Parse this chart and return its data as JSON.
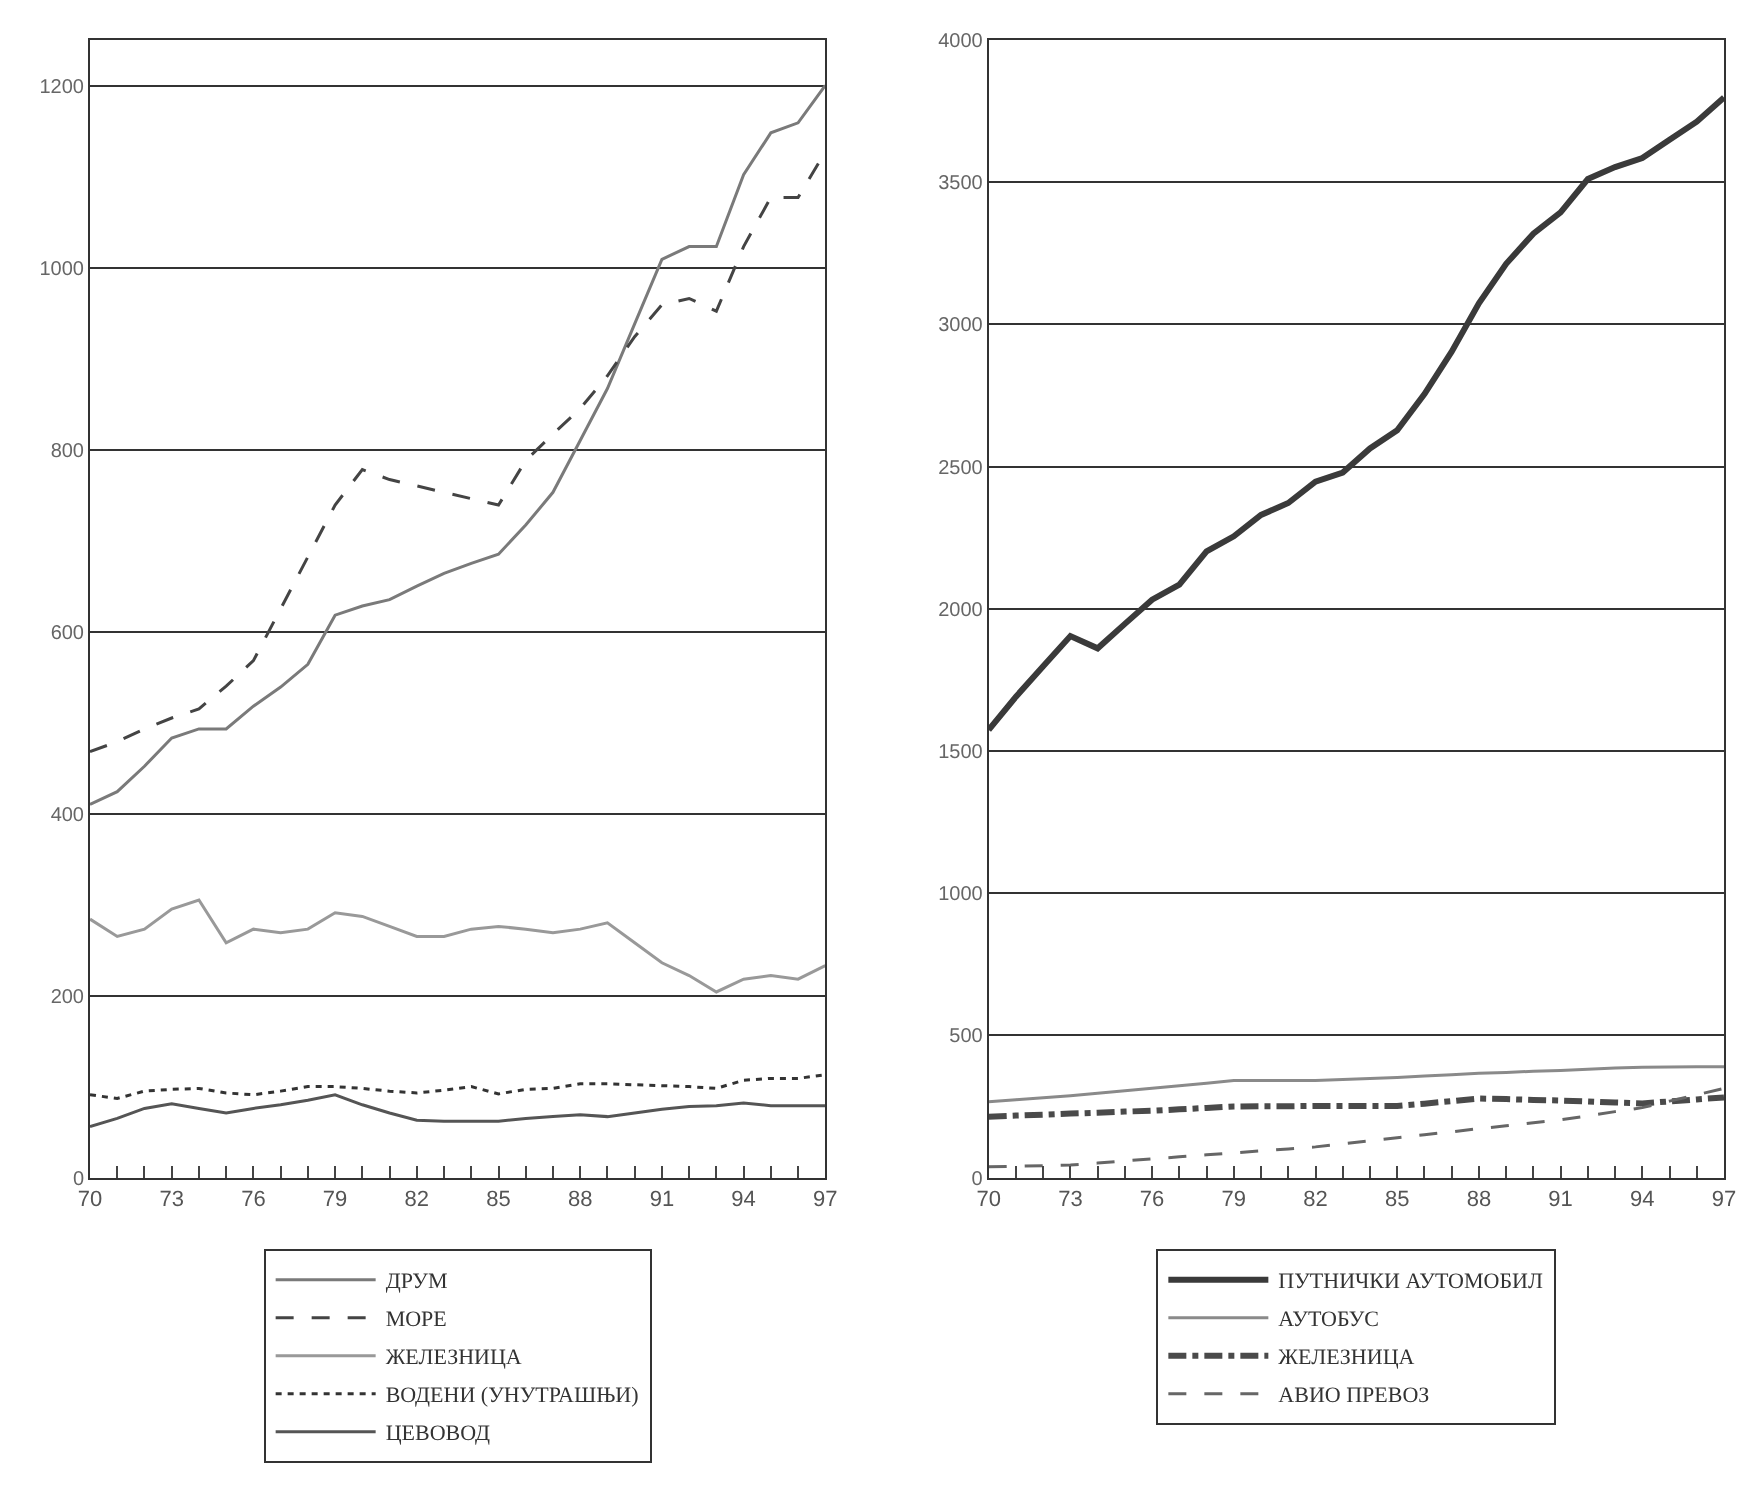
{
  "chart_data": [
    {
      "type": "line",
      "x": [
        1970,
        1971,
        1972,
        1973,
        1974,
        1975,
        1976,
        1977,
        1978,
        1979,
        1980,
        1981,
        1982,
        1983,
        1984,
        1985,
        1986,
        1987,
        1988,
        1989,
        1990,
        1991,
        1992,
        1993,
        1994,
        1995,
        1996,
        1997
      ],
      "xlim": [
        1970,
        1997
      ],
      "xticks": [
        {
          "value": 1970,
          "label": "70"
        },
        {
          "value": 1971,
          "label": null
        },
        {
          "value": 1972,
          "label": null
        },
        {
          "value": 1973,
          "label": "73"
        },
        {
          "value": 1974,
          "label": null
        },
        {
          "value": 1975,
          "label": null
        },
        {
          "value": 1976,
          "label": "76"
        },
        {
          "value": 1977,
          "label": null
        },
        {
          "value": 1978,
          "label": null
        },
        {
          "value": 1979,
          "label": "79"
        },
        {
          "value": 1980,
          "label": null
        },
        {
          "value": 1981,
          "label": null
        },
        {
          "value": 1982,
          "label": "82"
        },
        {
          "value": 1983,
          "label": null
        },
        {
          "value": 1984,
          "label": null
        },
        {
          "value": 1985,
          "label": "85"
        },
        {
          "value": 1986,
          "label": null
        },
        {
          "value": 1987,
          "label": null
        },
        {
          "value": 1988,
          "label": "88"
        },
        {
          "value": 1989,
          "label": null
        },
        {
          "value": 1990,
          "label": null
        },
        {
          "value": 1991,
          "label": "91"
        },
        {
          "value": 1992,
          "label": null
        },
        {
          "value": 1993,
          "label": null
        },
        {
          "value": 1994,
          "label": "94"
        },
        {
          "value": 1995,
          "label": null
        },
        {
          "value": 1996,
          "label": null
        },
        {
          "value": 1997,
          "label": "97"
        }
      ],
      "ylim": [
        0,
        1250
      ],
      "yticks": [
        0,
        200,
        400,
        600,
        800,
        1000,
        1200
      ],
      "grid": "y",
      "legend": "bottom",
      "series": [
        {
          "name": "ДРУМ",
          "color": "#7a7a7a",
          "line_style": "solid",
          "values": [
            410,
            424,
            452,
            483,
            493,
            493,
            518,
            539,
            564,
            618,
            628,
            635,
            650,
            664,
            675,
            685,
            717,
            753,
            810,
            867,
            938,
            1009,
            1023,
            1023,
            1102,
            1148,
            1159,
            1200
          ]
        },
        {
          "name": "МОРЕ",
          "color": "#444444",
          "line_style": "dashed",
          "values": [
            468,
            479,
            493,
            505,
            515,
            540,
            568,
            625,
            682,
            739,
            778,
            767,
            760,
            753,
            746,
            739,
            788,
            817,
            845,
            881,
            924,
            959,
            966,
            952,
            1023,
            1077,
            1077,
            1127
          ]
        },
        {
          "name": "ЖЕЛЕЗНИЦА",
          "color": "#999999",
          "line_style": "solid",
          "values": [
            284,
            265,
            273,
            295,
            305,
            258,
            273,
            269,
            273,
            291,
            287,
            276,
            265,
            265,
            273,
            276,
            273,
            269,
            273,
            280,
            258,
            236,
            222,
            204,
            218,
            222,
            218,
            233
          ]
        },
        {
          "name": "ВОДЕНИ (УНУТРАШЊИ)",
          "color": "#333333",
          "line_style": "dotted",
          "values": [
            91,
            87,
            95,
            97,
            98,
            93,
            91,
            95,
            100,
            100,
            98,
            95,
            93,
            96,
            100,
            92,
            97,
            98,
            103,
            103,
            102,
            101,
            100,
            98,
            107,
            109,
            109,
            113
          ]
        },
        {
          "name": "ЦЕВОВОД",
          "color": "#555555",
          "line_style": "solid",
          "values": [
            56,
            65,
            76,
            81,
            76,
            71,
            76,
            80,
            85,
            91,
            80,
            71,
            63,
            62,
            62,
            62,
            65,
            67,
            69,
            67,
            71,
            75,
            78,
            79,
            82,
            79,
            79,
            79
          ]
        }
      ]
    },
    {
      "type": "line",
      "x": [
        1970,
        1971,
        1972,
        1973,
        1974,
        1975,
        1976,
        1977,
        1978,
        1979,
        1980,
        1981,
        1982,
        1983,
        1984,
        1985,
        1986,
        1987,
        1988,
        1989,
        1990,
        1991,
        1992,
        1993,
        1994,
        1995,
        1996,
        1997
      ],
      "xlim": [
        1970,
        1997
      ],
      "xticks": [
        {
          "value": 1970,
          "label": "70"
        },
        {
          "value": 1971,
          "label": null
        },
        {
          "value": 1972,
          "label": null
        },
        {
          "value": 1973,
          "label": "73"
        },
        {
          "value": 1974,
          "label": null
        },
        {
          "value": 1975,
          "label": null
        },
        {
          "value": 1976,
          "label": "76"
        },
        {
          "value": 1977,
          "label": null
        },
        {
          "value": 1978,
          "label": null
        },
        {
          "value": 1979,
          "label": "79"
        },
        {
          "value": 1980,
          "label": null
        },
        {
          "value": 1981,
          "label": null
        },
        {
          "value": 1982,
          "label": "82"
        },
        {
          "value": 1983,
          "label": null
        },
        {
          "value": 1984,
          "label": null
        },
        {
          "value": 1985,
          "label": "85"
        },
        {
          "value": 1986,
          "label": null
        },
        {
          "value": 1987,
          "label": null
        },
        {
          "value": 1988,
          "label": "88"
        },
        {
          "value": 1989,
          "label": null
        },
        {
          "value": 1990,
          "label": null
        },
        {
          "value": 1991,
          "label": "91"
        },
        {
          "value": 1992,
          "label": null
        },
        {
          "value": 1993,
          "label": null
        },
        {
          "value": 1994,
          "label": "94"
        },
        {
          "value": 1995,
          "label": null
        },
        {
          "value": 1996,
          "label": null
        },
        {
          "value": 1997,
          "label": "97"
        }
      ],
      "ylim": [
        0,
        4000
      ],
      "yticks": [
        0,
        500,
        1000,
        1500,
        2000,
        2500,
        3000,
        3500,
        4000
      ],
      "grid": "y",
      "legend": "bottom",
      "series": [
        {
          "name": "ПУТНИЧКИ АУТОМОБИЛ",
          "color": "#3a3a3a",
          "line_style": "solid",
          "values": [
            1574,
            1691,
            1798,
            1904,
            1861,
            1947,
            2032,
            2085,
            2202,
            2255,
            2330,
            2372,
            2447,
            2479,
            2564,
            2628,
            2755,
            2904,
            3074,
            3213,
            3319,
            3394,
            3511,
            3553,
            3585,
            3649,
            3713,
            3798
          ]
        },
        {
          "name": "АУТОБУС",
          "color": "#8a8a8a",
          "line_style": "solid",
          "values": [
            267,
            274,
            281,
            288,
            297,
            305,
            314,
            323,
            332,
            341,
            341,
            341,
            341,
            345,
            348,
            352,
            357,
            362,
            367,
            370,
            374,
            377,
            381,
            385,
            388,
            389,
            390,
            390
          ]
        },
        {
          "name": "ЖЕЛЕЗНИЦА",
          "color": "#4a4a4a",
          "line_style": "dashdot",
          "values": [
            214,
            218,
            221,
            225,
            228,
            232,
            235,
            240,
            245,
            250,
            251,
            251,
            252,
            252,
            252,
            252,
            260,
            269,
            278,
            276,
            273,
            271,
            268,
            264,
            261,
            268,
            275,
            282
          ]
        },
        {
          "name": "АВИО ПРЕВОЗ",
          "color": "#666666",
          "line_style": "dashed",
          "values": [
            38,
            40,
            42,
            44,
            51,
            59,
            66,
            73,
            80,
            87,
            94,
            101,
            108,
            119,
            129,
            140,
            151,
            161,
            172,
            182,
            193,
            203,
            217,
            232,
            246,
            269,
            291,
            314
          ]
        }
      ]
    }
  ]
}
